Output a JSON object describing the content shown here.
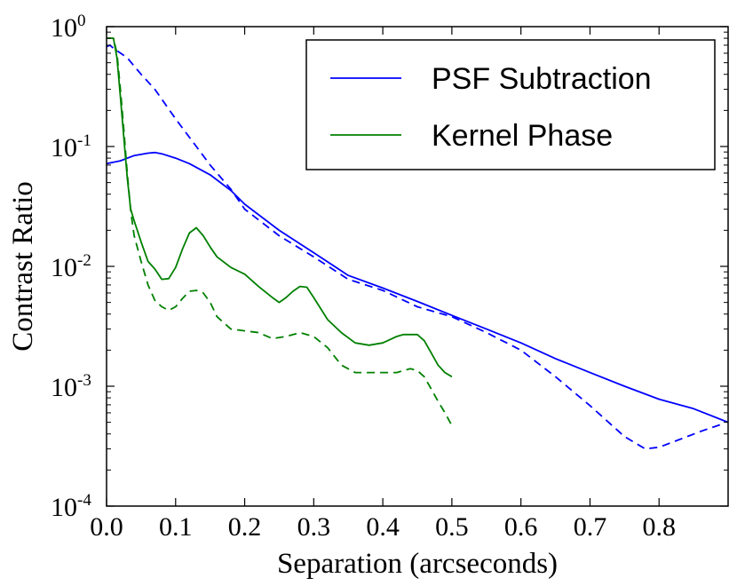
{
  "chart_data": {
    "type": "line",
    "title": "",
    "xlabel": "Separation (arcseconds)",
    "ylabel": "Contrast Ratio",
    "xlim": [
      0.0,
      0.9
    ],
    "ylim": [
      0.0001,
      1.0
    ],
    "yscale": "log",
    "grid": false,
    "legend_position": "top-right",
    "x_ticks": [
      {
        "value": 0.0,
        "label": "0.0"
      },
      {
        "value": 0.1,
        "label": "0.1"
      },
      {
        "value": 0.2,
        "label": "0.2"
      },
      {
        "value": 0.3,
        "label": "0.3"
      },
      {
        "value": 0.4,
        "label": "0.4"
      },
      {
        "value": 0.5,
        "label": "0.5"
      },
      {
        "value": 0.6,
        "label": "0.6"
      },
      {
        "value": 0.7,
        "label": "0.7"
      },
      {
        "value": 0.8,
        "label": "0.8"
      }
    ],
    "y_ticks": [
      {
        "value": 1.0,
        "base": "10",
        "exp": "0"
      },
      {
        "value": 0.1,
        "base": "10",
        "exp": "-1"
      },
      {
        "value": 0.01,
        "base": "10",
        "exp": "-2"
      },
      {
        "value": 0.001,
        "base": "10",
        "exp": "-3"
      },
      {
        "value": 0.0001,
        "base": "10",
        "exp": "-4"
      }
    ],
    "series": [
      {
        "name": "PSF Subtraction",
        "color": "#0000ff",
        "dash": "solid",
        "legend": true,
        "x": [
          0.0,
          0.02,
          0.04,
          0.06,
          0.07,
          0.08,
          0.1,
          0.12,
          0.15,
          0.18,
          0.2,
          0.25,
          0.3,
          0.35,
          0.4,
          0.45,
          0.5,
          0.55,
          0.6,
          0.65,
          0.7,
          0.75,
          0.8,
          0.85,
          0.9
        ],
        "y": [
          0.072,
          0.076,
          0.084,
          0.088,
          0.089,
          0.087,
          0.08,
          0.072,
          0.058,
          0.043,
          0.033,
          0.02,
          0.013,
          0.0084,
          0.0066,
          0.0051,
          0.0039,
          0.003,
          0.0023,
          0.0017,
          0.0013,
          0.001,
          0.00078,
          0.00065,
          0.0005
        ]
      },
      {
        "name": "PSF Subtraction (dashed)",
        "color": "#0000ff",
        "dash": "dashed",
        "legend": false,
        "x": [
          0.0,
          0.005,
          0.01,
          0.03,
          0.05,
          0.07,
          0.1,
          0.13,
          0.15,
          0.18,
          0.2,
          0.25,
          0.3,
          0.35,
          0.4,
          0.45,
          0.5,
          0.55,
          0.6,
          0.65,
          0.7,
          0.75,
          0.78,
          0.8,
          0.83,
          0.86,
          0.89
        ],
        "y": [
          0.68,
          0.7,
          0.66,
          0.55,
          0.4,
          0.3,
          0.17,
          0.1,
          0.07,
          0.044,
          0.03,
          0.018,
          0.012,
          0.0078,
          0.0063,
          0.0046,
          0.0038,
          0.0028,
          0.002,
          0.0012,
          0.00069,
          0.00038,
          0.0003,
          0.00031,
          0.00036,
          0.00042,
          0.00048
        ]
      },
      {
        "name": "Kernel Phase",
        "color": "#008000",
        "dash": "solid",
        "legend": true,
        "x": [
          0.0,
          0.01,
          0.015,
          0.02,
          0.025,
          0.03,
          0.035,
          0.04,
          0.05,
          0.06,
          0.07,
          0.08,
          0.09,
          0.1,
          0.11,
          0.12,
          0.13,
          0.14,
          0.15,
          0.16,
          0.18,
          0.2,
          0.22,
          0.24,
          0.25,
          0.26,
          0.27,
          0.28,
          0.29,
          0.3,
          0.32,
          0.34,
          0.36,
          0.38,
          0.4,
          0.42,
          0.43,
          0.44,
          0.45,
          0.46,
          0.47,
          0.48,
          0.49,
          0.5
        ],
        "y": [
          0.8,
          0.8,
          0.55,
          0.26,
          0.12,
          0.055,
          0.03,
          0.024,
          0.016,
          0.011,
          0.0095,
          0.0078,
          0.0079,
          0.0098,
          0.014,
          0.019,
          0.021,
          0.018,
          0.0145,
          0.012,
          0.0098,
          0.0086,
          0.0068,
          0.0055,
          0.005,
          0.0055,
          0.0062,
          0.0068,
          0.0067,
          0.0055,
          0.0036,
          0.0028,
          0.0023,
          0.0022,
          0.0023,
          0.0026,
          0.0027,
          0.0027,
          0.0027,
          0.0024,
          0.0019,
          0.0015,
          0.0013,
          0.0012
        ]
      },
      {
        "name": "Kernel Phase (dashed)",
        "color": "#008000",
        "dash": "dashed",
        "legend": false,
        "x": [
          0.0,
          0.01,
          0.015,
          0.02,
          0.025,
          0.03,
          0.035,
          0.04,
          0.05,
          0.06,
          0.07,
          0.08,
          0.09,
          0.1,
          0.11,
          0.12,
          0.13,
          0.14,
          0.15,
          0.16,
          0.18,
          0.2,
          0.22,
          0.24,
          0.26,
          0.28,
          0.3,
          0.32,
          0.34,
          0.36,
          0.38,
          0.4,
          0.42,
          0.43,
          0.44,
          0.45,
          0.46,
          0.47,
          0.48,
          0.49,
          0.5
        ],
        "y": [
          0.8,
          0.8,
          0.6,
          0.3,
          0.14,
          0.06,
          0.029,
          0.018,
          0.011,
          0.007,
          0.0052,
          0.0046,
          0.0043,
          0.0046,
          0.0054,
          0.0062,
          0.0063,
          0.006,
          0.005,
          0.0038,
          0.003,
          0.0029,
          0.0028,
          0.0025,
          0.0026,
          0.0028,
          0.0026,
          0.0021,
          0.0015,
          0.0013,
          0.0013,
          0.0013,
          0.0013,
          0.00135,
          0.0014,
          0.00135,
          0.0012,
          0.00095,
          0.00075,
          0.0006,
          0.00047
        ]
      }
    ]
  }
}
